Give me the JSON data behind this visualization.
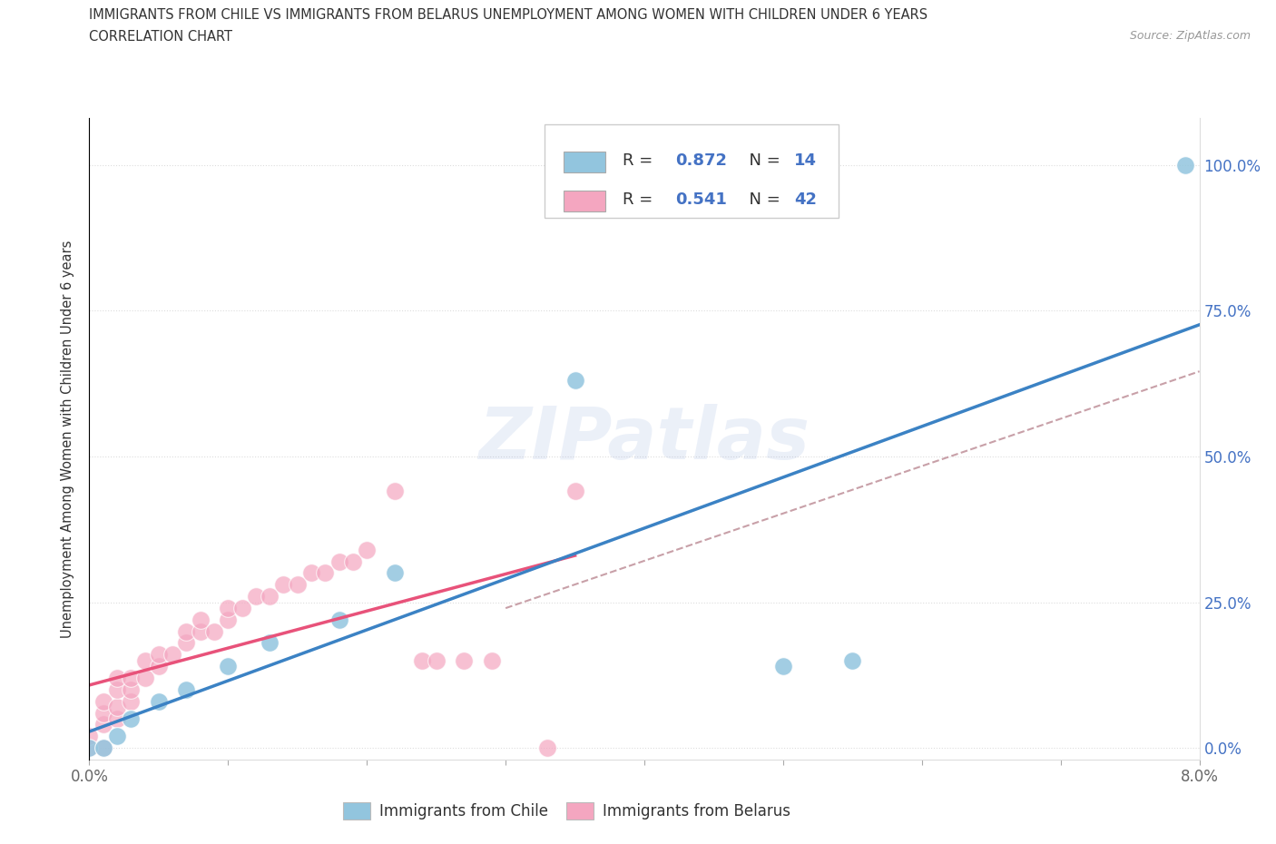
{
  "title_line1": "IMMIGRANTS FROM CHILE VS IMMIGRANTS FROM BELARUS UNEMPLOYMENT AMONG WOMEN WITH CHILDREN UNDER 6 YEARS",
  "title_line2": "CORRELATION CHART",
  "source_text": "Source: ZipAtlas.com",
  "ylabel": "Unemployment Among Women with Children Under 6 years",
  "xlim": [
    0.0,
    0.08
  ],
  "ylim": [
    -0.02,
    1.08
  ],
  "xticks": [
    0.0,
    0.01,
    0.02,
    0.03,
    0.04,
    0.05,
    0.06,
    0.07,
    0.08
  ],
  "xticklabels": [
    "0.0%",
    "",
    "",
    "",
    "",
    "",
    "",
    "",
    "8.0%"
  ],
  "yticks": [
    0.0,
    0.25,
    0.5,
    0.75,
    1.0
  ],
  "yticklabels": [
    "0.0%",
    "25.0%",
    "50.0%",
    "75.0%",
    "100.0%"
  ],
  "chile_color": "#92c5de",
  "belarus_color": "#f4a6c0",
  "chile_line_color": "#3b82c4",
  "belarus_line_color": "#e8527a",
  "dashed_line_color": "#c8a0a8",
  "R_chile": 0.872,
  "N_chile": 14,
  "R_belarus": 0.541,
  "N_belarus": 42,
  "stat_color": "#4472c4",
  "watermark": "ZIPatlas",
  "chile_scatter": [
    [
      0.0,
      0.0
    ],
    [
      0.001,
      0.0
    ],
    [
      0.002,
      0.02
    ],
    [
      0.003,
      0.05
    ],
    [
      0.005,
      0.08
    ],
    [
      0.007,
      0.1
    ],
    [
      0.01,
      0.14
    ],
    [
      0.013,
      0.18
    ],
    [
      0.018,
      0.22
    ],
    [
      0.022,
      0.3
    ],
    [
      0.035,
      0.63
    ],
    [
      0.05,
      0.14
    ],
    [
      0.055,
      0.15
    ],
    [
      0.079,
      1.0
    ]
  ],
  "belarus_scatter": [
    [
      0.0,
      0.0
    ],
    [
      0.0,
      0.02
    ],
    [
      0.001,
      0.0
    ],
    [
      0.001,
      0.04
    ],
    [
      0.001,
      0.06
    ],
    [
      0.001,
      0.08
    ],
    [
      0.002,
      0.05
    ],
    [
      0.002,
      0.07
    ],
    [
      0.002,
      0.1
    ],
    [
      0.002,
      0.12
    ],
    [
      0.003,
      0.08
    ],
    [
      0.003,
      0.1
    ],
    [
      0.003,
      0.12
    ],
    [
      0.004,
      0.12
    ],
    [
      0.004,
      0.15
    ],
    [
      0.005,
      0.14
    ],
    [
      0.005,
      0.16
    ],
    [
      0.006,
      0.16
    ],
    [
      0.007,
      0.18
    ],
    [
      0.007,
      0.2
    ],
    [
      0.008,
      0.2
    ],
    [
      0.008,
      0.22
    ],
    [
      0.009,
      0.2
    ],
    [
      0.01,
      0.22
    ],
    [
      0.01,
      0.24
    ],
    [
      0.011,
      0.24
    ],
    [
      0.012,
      0.26
    ],
    [
      0.013,
      0.26
    ],
    [
      0.014,
      0.28
    ],
    [
      0.015,
      0.28
    ],
    [
      0.016,
      0.3
    ],
    [
      0.017,
      0.3
    ],
    [
      0.018,
      0.32
    ],
    [
      0.019,
      0.32
    ],
    [
      0.02,
      0.34
    ],
    [
      0.022,
      0.44
    ],
    [
      0.024,
      0.15
    ],
    [
      0.025,
      0.15
    ],
    [
      0.027,
      0.15
    ],
    [
      0.029,
      0.15
    ],
    [
      0.033,
      0.0
    ],
    [
      0.035,
      0.44
    ]
  ]
}
